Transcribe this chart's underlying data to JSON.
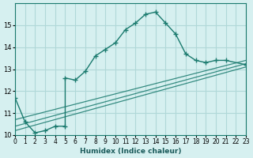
{
  "xlabel": "Humidex (Indice chaleur)",
  "ylabel": "",
  "background_color": "#d6f0f0",
  "grid_color": "#b0d8d8",
  "line_color": "#1a7a6e",
  "xlim": [
    0,
    23
  ],
  "ylim": [
    10,
    16
  ],
  "yticks": [
    10,
    11,
    12,
    13,
    14,
    15
  ],
  "xticks": [
    0,
    1,
    2,
    3,
    4,
    5,
    6,
    7,
    8,
    9,
    10,
    11,
    12,
    13,
    14,
    15,
    16,
    17,
    18,
    19,
    20,
    21,
    22,
    23
  ],
  "curve1_x": [
    0,
    1,
    2,
    3,
    4,
    5,
    5,
    6,
    7,
    8,
    9,
    10,
    11,
    12,
    13,
    14,
    15,
    16,
    17,
    18,
    19,
    20,
    21,
    23
  ],
  "curve1_y": [
    11.7,
    10.6,
    10.1,
    10.2,
    10.4,
    10.4,
    12.6,
    12.5,
    12.9,
    13.6,
    13.9,
    14.2,
    14.8,
    15.1,
    15.5,
    15.6,
    15.1,
    14.6,
    13.7,
    13.4,
    13.3,
    13.4,
    13.4,
    13.2
  ],
  "line1_x": [
    0,
    23
  ],
  "line1_y": [
    10.2,
    13.1
  ],
  "line2_x": [
    0,
    23
  ],
  "line2_y": [
    10.4,
    13.25
  ],
  "line3_x": [
    0,
    23
  ],
  "line3_y": [
    10.7,
    13.4
  ]
}
